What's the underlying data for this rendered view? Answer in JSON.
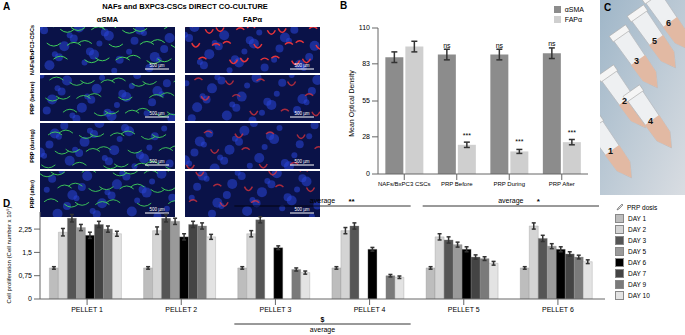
{
  "chart_data": [
    {
      "type": "bar",
      "letter": "B",
      "y_label": "Mean Optical Density",
      "categories": [
        "NAFs/BxPC3 CSCs",
        "PRP Before",
        "PRP During",
        "PRP After"
      ],
      "series": [
        {
          "name": "αSMA",
          "color": "#8c8c8c",
          "values": [
            88,
            90,
            90,
            91
          ],
          "errors": [
            4,
            4,
            4,
            4
          ],
          "significance": [
            null,
            "ns",
            "ns",
            "ns"
          ]
        },
        {
          "name": "FAPα",
          "color": "#cfcfcf",
          "values": [
            96,
            22,
            17,
            24
          ],
          "errors": [
            4,
            2,
            1.5,
            2
          ],
          "significance": [
            null,
            "***",
            "***",
            "***"
          ]
        }
      ],
      "ylim": [
        0,
        110
      ],
      "yticks": [
        0,
        28,
        55,
        83,
        110
      ],
      "grid": false,
      "legend": "top-right"
    },
    {
      "type": "bar",
      "letter": "D",
      "y_label": "Cell proliferation (Cell number x 10⁵)",
      "legend_title": "PRP dosis",
      "categories": [
        "PELLET 1",
        "PELLET 2",
        "PELLET 3",
        "PELLET 4",
        "PELLET 5",
        "PELLET 6"
      ],
      "series": [
        {
          "name": "DAY 1",
          "color": "#bdbdbd",
          "values": [
            1.0,
            1.0,
            1.0,
            1.0,
            1.0,
            1.0
          ],
          "errors": [
            0.04,
            0.04,
            0.04,
            0.04,
            0.04,
            0.04
          ]
        },
        {
          "name": "DAY 2",
          "color": "#d4d4d4",
          "values": [
            2.15,
            2.2,
            2.1,
            2.2,
            2.0,
            2.35
          ],
          "errors": [
            0.12,
            0.12,
            0.1,
            0.1,
            0.1,
            0.1
          ]
        },
        {
          "name": "DAY 3",
          "color": "#555555",
          "values": [
            2.6,
            2.6,
            2.55,
            2.35,
            1.9,
            1.95
          ],
          "errors": [
            0.12,
            0.12,
            0.1,
            0.1,
            0.1,
            0.1
          ]
        },
        {
          "name": "DAY 5",
          "color": "#9a9a9a",
          "values": [
            2.3,
            2.5,
            null,
            null,
            1.75,
            1.7
          ],
          "errors": [
            0.1,
            0.1,
            null,
            null,
            0.08,
            0.08
          ]
        },
        {
          "name": "DAY 6",
          "color": "#000000",
          "values": [
            2.05,
            2.0,
            1.65,
            1.6,
            1.6,
            1.6
          ],
          "errors": [
            0.1,
            0.1,
            0.06,
            0.06,
            0.08,
            0.08
          ]
        },
        {
          "name": "DAY 7",
          "color": "#444444",
          "values": [
            2.4,
            2.4,
            null,
            null,
            1.35,
            1.45
          ],
          "errors": [
            0.1,
            0.1,
            null,
            null,
            0.07,
            0.07
          ]
        },
        {
          "name": "DAY 9",
          "color": "#7a7a7a",
          "values": [
            2.25,
            2.35,
            0.95,
            0.75,
            1.3,
            1.35
          ],
          "errors": [
            0.1,
            0.1,
            0.05,
            0.04,
            0.06,
            0.06
          ]
        },
        {
          "name": "DAY 10",
          "color": "#e3e3e3",
          "values": [
            2.1,
            2.0,
            0.85,
            0.7,
            1.15,
            1.2
          ],
          "errors": [
            0.08,
            0.08,
            0.05,
            0.04,
            0.06,
            0.06
          ]
        }
      ],
      "ylim": [
        0,
        2.8
      ],
      "yticks": [
        0,
        {
          "value": 0.75,
          "label": "0,75"
        },
        {
          "value": 1.5,
          "label": "1,5"
        },
        {
          "value": 2.25,
          "label": "2,25"
        }
      ],
      "grid": false,
      "legend": "right",
      "brackets_above": [
        {
          "text": "average",
          "significance": "**",
          "categories": [
            "PELLET 3",
            "PELLET 4"
          ]
        },
        {
          "text": "average",
          "significance": "*",
          "categories": [
            "PELLET 5",
            "PELLET 6"
          ]
        }
      ],
      "brackets_below": [
        {
          "text": "average",
          "significance": "$",
          "categories": [
            "PELLET 3",
            "PELLET 4"
          ]
        }
      ]
    }
  ],
  "panel_A": {
    "letter": "A",
    "title": "NAFs and BXPC3-CSCs DIRECT CO-CULTURE",
    "columns": [
      "αSMA",
      "FAPα"
    ],
    "rows": [
      "NAFs/BxPC3-CSCs",
      "PRP (before)",
      "PRP (during)",
      "PRP (after)"
    ],
    "scale_bar": "500 µm"
  },
  "panel_C": {
    "letter": "C",
    "labels": [
      "1",
      "2",
      "3",
      "4",
      "5",
      "6"
    ]
  }
}
